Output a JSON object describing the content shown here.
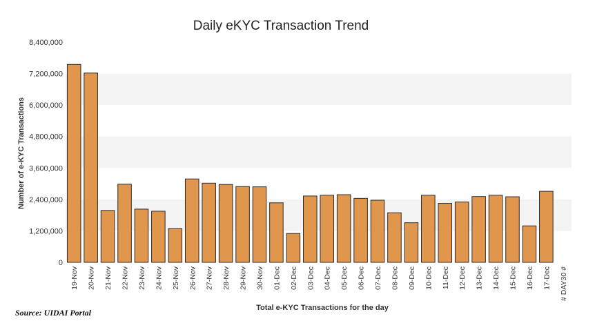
{
  "source": "Source: UIDAI Portal",
  "chart_data": {
    "type": "bar",
    "title": "Daily eKYC Transaction Trend",
    "xlabel": "Total e-KYC Transactions for the day",
    "ylabel": "Number of e-KYC Transactions",
    "ylim": [
      0,
      8400000
    ],
    "yticks": [
      0,
      1200000,
      2400000,
      3600000,
      4800000,
      6000000,
      7200000,
      8400000
    ],
    "ytick_labels": [
      "0",
      "1,200,000",
      "2,400,000",
      "3,600,000",
      "4,800,000",
      "6,000,000",
      "7,200,000",
      "8,400,000"
    ],
    "categories": [
      "19-Nov",
      "20-Nov",
      "21-Nov",
      "22-Nov",
      "23-Nov",
      "24-Nov",
      "25-Nov",
      "26-Nov",
      "27-Nov",
      "28-Nov",
      "29-Nov",
      "30-Nov",
      "01-Dec",
      "02-Dec",
      "03-Dec",
      "04-Dec",
      "05-Dec",
      "06-Dec",
      "07-Dec",
      "08-Dec",
      "09-Dec",
      "10-Dec",
      "11-Dec",
      "12-Dec",
      "13-Dec",
      "14-Dec",
      "15-Dec",
      "16-Dec",
      "17-Dec",
      "# DAY30 #"
    ],
    "values": [
      7550000,
      7220000,
      1980000,
      2980000,
      2030000,
      1950000,
      1290000,
      3180000,
      3020000,
      2970000,
      2890000,
      2880000,
      2270000,
      1100000,
      2530000,
      2560000,
      2580000,
      2440000,
      2370000,
      1890000,
      1510000,
      2560000,
      2250000,
      2300000,
      2510000,
      2560000,
      2500000,
      1390000,
      2710000,
      null
    ],
    "bar_color": "#e0974d",
    "bar_edge_color": "#2a2a2a",
    "band_color": "#f4f4f4",
    "grid": false,
    "legend": "none"
  }
}
